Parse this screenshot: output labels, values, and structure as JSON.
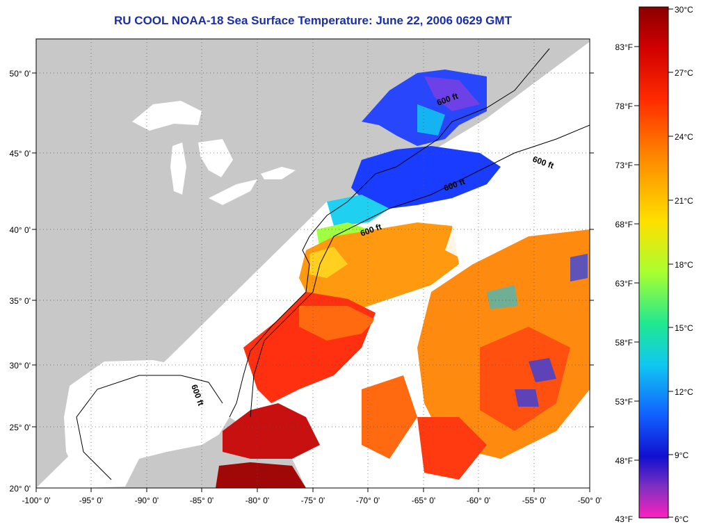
{
  "title": "RU COOL  NOAA-18  Sea Surface Temperature:  June 22, 2006 0629 GMT",
  "lat_labels": [
    "50° 0'",
    "45° 0'",
    "40° 0'",
    "35° 0'",
    "30° 0'",
    "25° 0'",
    "20° 0'"
  ],
  "lon_labels": [
    "-100° 0'",
    "-95° 0'",
    "-90° 0'",
    "-85° 0'",
    "-80° 0'",
    "-75° 0'",
    "-70° 0'",
    "-65° 0'",
    "-60° 0'",
    "-55° 0'",
    "-50° 0'"
  ],
  "isobath_labels": [
    "600 ft",
    "600 ft",
    "600 ft",
    "600 ft",
    "600 ft"
  ],
  "colorbar": {
    "celsius": [
      "30°C",
      "27°C",
      "24°C",
      "21°C",
      "18°C",
      "15°C",
      "12°C",
      "9°C",
      "6°C"
    ],
    "fahrenheit": [
      "83°F",
      "78°F",
      "73°F",
      "68°F",
      "63°F",
      "58°F",
      "53°F",
      "48°F",
      "43°F"
    ]
  },
  "colors": {
    "land": "#c8c8c8",
    "cloud": "#ffffff",
    "title": "#1a2ea8"
  }
}
